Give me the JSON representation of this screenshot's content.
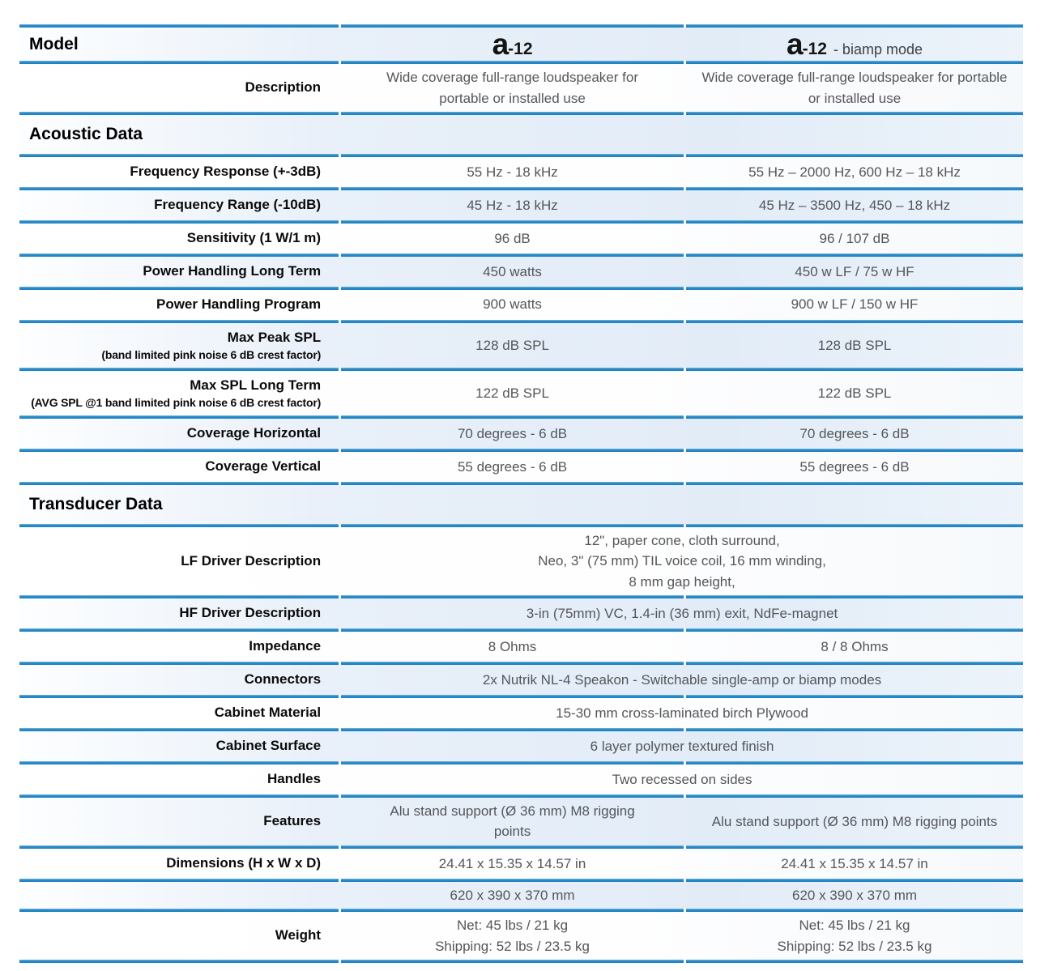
{
  "colors": {
    "rule_blue": "#1E86C7",
    "row_tint_blue": "#E2ECF7",
    "value_text": "#54565A",
    "label_text": "#000000"
  },
  "rows": [
    {
      "type": "model",
      "label": "Model",
      "col1_brand": "a",
      "col1_model": "-12",
      "col1_suffix": "",
      "col2_brand": "a",
      "col2_model": "-12",
      "col2_suffix": "- biamp mode"
    },
    {
      "type": "data",
      "label": "Description",
      "col1": "Wide coverage full-range loudspeaker for\nportable or installed use",
      "col2": "Wide coverage full-range loudspeaker for portable\nor installed use"
    },
    {
      "type": "section",
      "label": "Acoustic Data"
    },
    {
      "type": "data",
      "label": "Frequency Response (+-3dB)",
      "col1": "55 Hz - 18 kHz",
      "col2": "55 Hz – 2000 Hz, 600 Hz – 18 kHz"
    },
    {
      "type": "data",
      "label": "Frequency Range (-10dB)",
      "col1": "45 Hz - 18 kHz",
      "col2": "45 Hz – 3500 Hz, 450 – 18 kHz"
    },
    {
      "type": "data",
      "label": "Sensitivity (1 W/1 m)",
      "col1": "96 dB",
      "col2": "96 / 107 dB"
    },
    {
      "type": "data",
      "label": "Power Handling Long Term",
      "col1": "450 watts",
      "col2": "450 w LF / 75 w HF"
    },
    {
      "type": "data",
      "label": "Power Handling Program",
      "col1": "900 watts",
      "col2": "900 w LF / 150 w HF"
    },
    {
      "type": "data",
      "label": "Max Peak SPL",
      "sublabel": "(band limited pink noise 6 dB crest factor)",
      "col1": "128 dB SPL",
      "col2": "128 dB SPL"
    },
    {
      "type": "data",
      "label": "Max SPL Long Term",
      "sublabel": "(AVG SPL @1 band limited pink noise 6 dB crest factor)",
      "col1": "122 dB SPL",
      "col2": "122 dB SPL"
    },
    {
      "type": "data",
      "label": "Coverage Horizontal",
      "col1": "70 degrees - 6 dB",
      "col2": "70 degrees - 6 dB"
    },
    {
      "type": "data",
      "label": "Coverage Vertical",
      "col1": "55 degrees - 6 dB",
      "col2": "55 degrees - 6 dB"
    },
    {
      "type": "section",
      "label": "Transducer Data"
    },
    {
      "type": "span",
      "label": "LF Driver Description",
      "value": "12\", paper cone, cloth surround,\nNeo, 3\" (75 mm) TIL voice coil, 16 mm winding,\n8 mm gap height,"
    },
    {
      "type": "span",
      "label": "HF Driver Description",
      "value": "3-in (75mm) VC, 1.4-in (36 mm) exit, NdFe-magnet"
    },
    {
      "type": "data",
      "label": "Impedance",
      "col1": "8 Ohms",
      "col2": "8 / 8 Ohms"
    },
    {
      "type": "span",
      "label": "Connectors",
      "value": "2x Nutrik NL-4 Speakon - Switchable single-amp or biamp modes"
    },
    {
      "type": "span",
      "label": "Cabinet Material",
      "value": "15-30 mm cross-laminated birch Plywood"
    },
    {
      "type": "span",
      "label": "Cabinet Surface",
      "value": "6 layer polymer textured finish"
    },
    {
      "type": "span",
      "label": "Handles",
      "value": "Two recessed on sides"
    },
    {
      "type": "data",
      "label": "Features",
      "col1": "Alu stand support (Ø 36 mm) M8 rigging\npoints",
      "col2": "Alu stand support (Ø 36 mm) M8 rigging points"
    },
    {
      "type": "data",
      "label": "Dimensions (H x W x D)",
      "col1": "24.41 x 15.35 x 14.57 in",
      "col2": "24.41 x 15.35 x 14.57 in"
    },
    {
      "type": "data",
      "label": "",
      "col1": "620 x 390 x 370 mm",
      "col2": "620 x 390 x 370 mm"
    },
    {
      "type": "data",
      "label": "Weight",
      "col1": "Net: 45 lbs / 21 kg\nShipping: 52 lbs / 23.5 kg",
      "col2": "Net: 45 lbs / 21 kg\nShipping: 52 lbs / 23.5 kg"
    }
  ]
}
